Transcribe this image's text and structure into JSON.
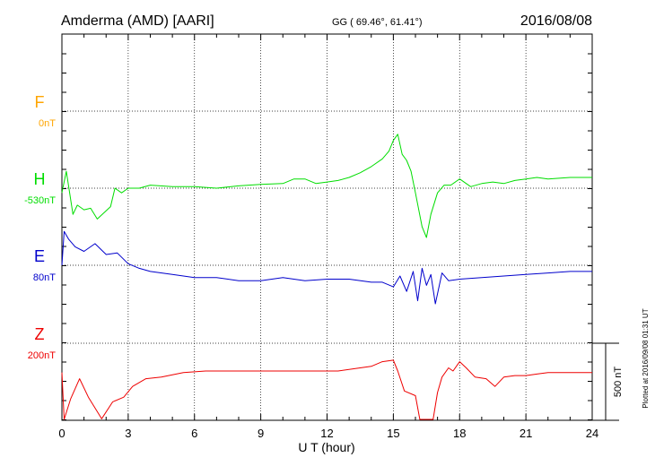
{
  "header": {
    "station": "Amderma (AMD)  [AARI]",
    "coords": "GG ( 69.46°,  61.41°)",
    "date": "2016/08/08"
  },
  "footer_note": "Plotted at 2016/09/08 01:31 UT",
  "colors": {
    "F": "#ffa500",
    "H": "#00dd00",
    "E": "#0000cc",
    "Z": "#ee0000"
  },
  "chart_data": {
    "type": "line",
    "title": "",
    "xlabel": "U T (hour)",
    "xlim": [
      0,
      24
    ],
    "xticks": [
      "0",
      "3",
      "6",
      "9",
      "12",
      "15",
      "18",
      "21",
      "24"
    ],
    "grid": true,
    "scale_bar": {
      "label": "500 nT",
      "value": 500
    },
    "panels": [
      {
        "name": "F",
        "baseline": "0nT",
        "points": []
      },
      {
        "name": "H",
        "baseline": "-530nT",
        "points": [
          [
            0,
            -560
          ],
          [
            0.2,
            -420
          ],
          [
            0.5,
            -700
          ],
          [
            0.7,
            -640
          ],
          [
            1.0,
            -670
          ],
          [
            1.3,
            -660
          ],
          [
            1.6,
            -730
          ],
          [
            1.9,
            -690
          ],
          [
            2.2,
            -650
          ],
          [
            2.4,
            -530
          ],
          [
            2.7,
            -560
          ],
          [
            3.0,
            -530
          ],
          [
            3.5,
            -530
          ],
          [
            4.0,
            -510
          ],
          [
            5.0,
            -520
          ],
          [
            6.0,
            -520
          ],
          [
            7.0,
            -530
          ],
          [
            8.0,
            -515
          ],
          [
            9.0,
            -505
          ],
          [
            10.0,
            -500
          ],
          [
            10.5,
            -470
          ],
          [
            11.0,
            -470
          ],
          [
            11.5,
            -500
          ],
          [
            12.0,
            -490
          ],
          [
            12.5,
            -480
          ],
          [
            13.0,
            -460
          ],
          [
            13.5,
            -430
          ],
          [
            14.0,
            -390
          ],
          [
            14.5,
            -340
          ],
          [
            14.8,
            -290
          ],
          [
            15.0,
            -220
          ],
          [
            15.2,
            -180
          ],
          [
            15.4,
            -310
          ],
          [
            15.6,
            -350
          ],
          [
            15.8,
            -420
          ],
          [
            16.0,
            -560
          ],
          [
            16.3,
            -780
          ],
          [
            16.5,
            -850
          ],
          [
            16.7,
            -700
          ],
          [
            17.0,
            -560
          ],
          [
            17.3,
            -510
          ],
          [
            17.6,
            -510
          ],
          [
            18.0,
            -470
          ],
          [
            18.5,
            -520
          ],
          [
            19.0,
            -500
          ],
          [
            19.5,
            -490
          ],
          [
            20.0,
            -500
          ],
          [
            20.5,
            -480
          ],
          [
            21.0,
            -470
          ],
          [
            21.5,
            -460
          ],
          [
            22.0,
            -470
          ],
          [
            23.0,
            -460
          ],
          [
            24.0,
            -460
          ]
        ]
      },
      {
        "name": "E",
        "baseline": "80nT",
        "points": [
          [
            0,
            80
          ],
          [
            0.1,
            300
          ],
          [
            0.3,
            250
          ],
          [
            0.6,
            200
          ],
          [
            1.0,
            170
          ],
          [
            1.5,
            220
          ],
          [
            2.0,
            150
          ],
          [
            2.5,
            160
          ],
          [
            3.0,
            90
          ],
          [
            3.5,
            60
          ],
          [
            4.0,
            40
          ],
          [
            5.0,
            20
          ],
          [
            6.0,
            0
          ],
          [
            7.0,
            0
          ],
          [
            8.0,
            -20
          ],
          [
            9.0,
            -20
          ],
          [
            10.0,
            0
          ],
          [
            11.0,
            -20
          ],
          [
            12.0,
            -10
          ],
          [
            13.0,
            -10
          ],
          [
            14.0,
            -30
          ],
          [
            14.5,
            -30
          ],
          [
            15.0,
            -60
          ],
          [
            15.3,
            10
          ],
          [
            15.6,
            -90
          ],
          [
            15.9,
            40
          ],
          [
            16.1,
            -150
          ],
          [
            16.3,
            60
          ],
          [
            16.5,
            -50
          ],
          [
            16.7,
            20
          ],
          [
            16.9,
            -170
          ],
          [
            17.2,
            30
          ],
          [
            17.5,
            -20
          ],
          [
            18.0,
            -10
          ],
          [
            19.0,
            0
          ],
          [
            20.0,
            10
          ],
          [
            21.0,
            20
          ],
          [
            22.0,
            30
          ],
          [
            23.0,
            40
          ],
          [
            24.0,
            40
          ]
        ]
      },
      {
        "name": "Z",
        "baseline": "200nT",
        "points": [
          [
            0,
            10
          ],
          [
            0.1,
            -380
          ],
          [
            0.4,
            -160
          ],
          [
            0.8,
            -30
          ],
          [
            1.2,
            -150
          ],
          [
            1.8,
            -290
          ],
          [
            2.3,
            -180
          ],
          [
            2.8,
            -150
          ],
          [
            3.2,
            -80
          ],
          [
            3.8,
            -30
          ],
          [
            4.5,
            -20
          ],
          [
            5.5,
            10
          ],
          [
            6.5,
            20
          ],
          [
            7.5,
            20
          ],
          [
            8.5,
            20
          ],
          [
            9.5,
            20
          ],
          [
            10.5,
            20
          ],
          [
            11.5,
            20
          ],
          [
            12.5,
            20
          ],
          [
            13.5,
            40
          ],
          [
            14.0,
            50
          ],
          [
            14.5,
            80
          ],
          [
            15.0,
            90
          ],
          [
            15.2,
            20
          ],
          [
            15.5,
            -110
          ],
          [
            16.0,
            -140
          ],
          [
            16.2,
            -380
          ],
          [
            16.5,
            -700
          ],
          [
            16.8,
            -320
          ],
          [
            17.0,
            -120
          ],
          [
            17.2,
            -20
          ],
          [
            17.5,
            40
          ],
          [
            17.7,
            20
          ],
          [
            18.0,
            80
          ],
          [
            18.3,
            40
          ],
          [
            18.7,
            -20
          ],
          [
            19.2,
            -30
          ],
          [
            19.6,
            -80
          ],
          [
            20.0,
            -20
          ],
          [
            20.5,
            -10
          ],
          [
            21.0,
            -10
          ],
          [
            21.5,
            0
          ],
          [
            22.0,
            10
          ],
          [
            23.0,
            10
          ],
          [
            24.0,
            10
          ]
        ]
      }
    ]
  }
}
